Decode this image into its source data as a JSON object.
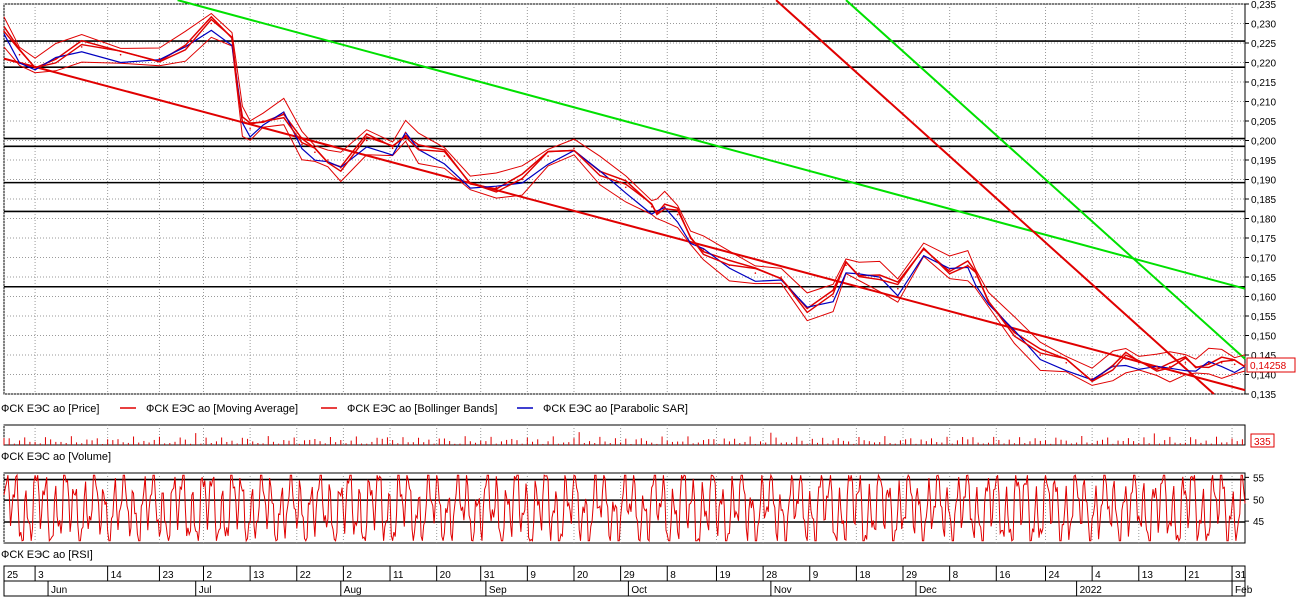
{
  "chart_data": [
    {
      "type": "line",
      "panel": "price",
      "ylim": [
        0.135,
        0.235
      ],
      "y_ticks": [
        "0,235",
        "0,230",
        "0,225",
        "0,220",
        "0,215",
        "0,210",
        "0,205",
        "0,200",
        "0,195",
        "0,190",
        "0,185",
        "0,180",
        "0,175",
        "0,170",
        "0,165",
        "0,160",
        "0,155",
        "0,150",
        "0,145",
        "0,140",
        "0,135"
      ],
      "last_value": "0,14258",
      "grid": true,
      "legend": [
        {
          "name": "ФСК ЕЭС ао [Price]",
          "color": "#000000"
        },
        {
          "name": "ФСК ЕЭС ао [Moving Average]",
          "color": "#e00000"
        },
        {
          "name": "ФСК ЕЭС ао [Bollinger Bands]",
          "color": "#e00000"
        },
        {
          "name": "ФСК ЕЭС ао [Parabolic SAR]",
          "color": "#0000c0"
        }
      ],
      "horizontal_levels": [
        0.2255,
        0.2188,
        0.2005,
        0.1985,
        0.1892,
        0.1818,
        0.1625
      ],
      "series": [
        {
          "name": "ФСК ЕЭС ао [Price]",
          "x": [
            0,
            6,
            12,
            20,
            30,
            45,
            60,
            70,
            80,
            88,
            90,
            92,
            95,
            100,
            108,
            115,
            120,
            125,
            130,
            140,
            150,
            155,
            160,
            170,
            180,
            190,
            200,
            210,
            220,
            230,
            240,
            250,
            252,
            255,
            260,
            265,
            270,
            280,
            290,
            300,
            310,
            320,
            325,
            330,
            338,
            345,
            355,
            365,
            372,
            375,
            380,
            390,
            400,
            410,
            420,
            428,
            433,
            438,
            445,
            450,
            456,
            460,
            465,
            470,
            475,
            479
          ],
          "y": [
            0.228,
            0.222,
            0.219,
            0.221,
            0.224,
            0.222,
            0.221,
            0.224,
            0.23,
            0.226,
            0.215,
            0.205,
            0.203,
            0.205,
            0.207,
            0.199,
            0.197,
            0.195,
            0.193,
            0.2,
            0.198,
            0.202,
            0.198,
            0.196,
            0.189,
            0.188,
            0.19,
            0.196,
            0.198,
            0.192,
            0.188,
            0.183,
            0.182,
            0.183,
            0.181,
            0.175,
            0.172,
            0.168,
            0.166,
            0.165,
            0.157,
            0.16,
            0.168,
            0.166,
            0.165,
            0.162,
            0.172,
            0.167,
            0.168,
            0.165,
            0.159,
            0.151,
            0.145,
            0.143,
            0.139,
            0.142,
            0.144,
            0.143,
            0.142,
            0.142,
            0.143,
            0.142,
            0.143,
            0.143,
            0.1426,
            0.1426
          ]
        }
      ],
      "trendlines": [
        {
          "color": "#00e000",
          "from": [
            67,
            0.236
          ],
          "to": [
            479,
            0.162
          ]
        },
        {
          "color": "#e00000",
          "from": [
            0,
            0.221
          ],
          "to": [
            479,
            0.136
          ]
        },
        {
          "color": "#e00000",
          "from": [
            298,
            0.236
          ],
          "to": [
            467,
            0.135
          ]
        },
        {
          "color": "#00e000",
          "from": [
            325,
            0.236
          ],
          "to": [
            479,
            0.144
          ]
        }
      ]
    },
    {
      "type": "bar",
      "panel": "volume",
      "last_value": "335",
      "legend": [
        {
          "name": "ФСК ЕЭС ао [Volume]",
          "color": "#e00000"
        }
      ]
    },
    {
      "type": "line",
      "panel": "rsi",
      "ylim": [
        40,
        56
      ],
      "y_ticks": [
        "55",
        "50",
        "45"
      ],
      "horizontal_levels": [
        54.5,
        49.8,
        44.8
      ],
      "legend": [
        {
          "name": "ФСК ЕЭС ао [RSI]",
          "color": "#e00000"
        }
      ]
    }
  ],
  "x_axis": {
    "day_ticks": [
      {
        "x": 0,
        "label": "25"
      },
      {
        "x": 12,
        "label": "3"
      },
      {
        "x": 40,
        "label": "14"
      },
      {
        "x": 60,
        "label": "23"
      },
      {
        "x": 77,
        "label": "2"
      },
      {
        "x": 95,
        "label": "13"
      },
      {
        "x": 113,
        "label": "22"
      },
      {
        "x": 131,
        "label": "2"
      },
      {
        "x": 149,
        "label": "11"
      },
      {
        "x": 167,
        "label": "20"
      },
      {
        "x": 184,
        "label": "31"
      },
      {
        "x": 202,
        "label": "9"
      },
      {
        "x": 220,
        "label": "20"
      },
      {
        "x": 238,
        "label": "29"
      },
      {
        "x": 256,
        "label": "8"
      },
      {
        "x": 275,
        "label": "19"
      },
      {
        "x": 293,
        "label": "28"
      },
      {
        "x": 311,
        "label": "9"
      },
      {
        "x": 329,
        "label": "18"
      },
      {
        "x": 347,
        "label": "29"
      },
      {
        "x": 365,
        "label": "8"
      },
      {
        "x": 383,
        "label": "16"
      },
      {
        "x": 402,
        "label": "24"
      },
      {
        "x": 420,
        "label": "4"
      },
      {
        "x": 438,
        "label": "13"
      },
      {
        "x": 456,
        "label": "21"
      },
      {
        "x": 474,
        "label": "31"
      }
    ],
    "month_ticks": [
      {
        "x": 17,
        "label": "Jun"
      },
      {
        "x": 74,
        "label": "Jul"
      },
      {
        "x": 130,
        "label": "Aug"
      },
      {
        "x": 186,
        "label": "Sep"
      },
      {
        "x": 241,
        "label": "Oct"
      },
      {
        "x": 296,
        "label": "Nov"
      },
      {
        "x": 352,
        "label": "Dec"
      },
      {
        "x": 414,
        "label": "2022"
      },
      {
        "x": 474,
        "label": "Feb"
      }
    ]
  }
}
